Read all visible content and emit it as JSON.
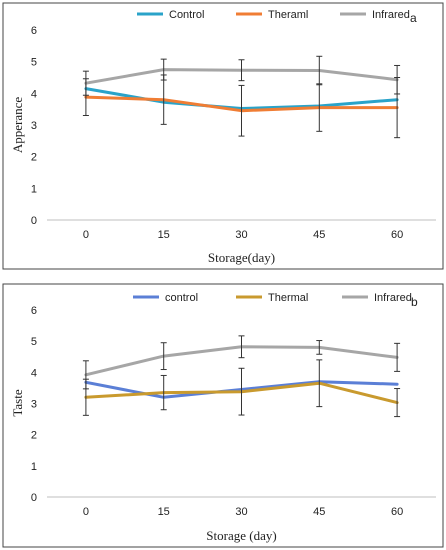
{
  "chart_data": [
    {
      "type": "line",
      "panel_label": "a",
      "x": [
        0,
        15,
        30,
        45,
        60
      ],
      "xlabel": "Storage(day)",
      "ylabel": "Apperance",
      "ylim": [
        0,
        6
      ],
      "yticks": [
        0,
        1,
        2,
        3,
        4,
        5,
        6
      ],
      "grid": false,
      "legend_position": "top",
      "series": [
        {
          "name": "Control",
          "color": "#2aa3c9",
          "values": [
            4.15,
            3.72,
            3.52,
            3.6,
            3.8
          ],
          "errors": [
            0.0,
            0.0,
            0.0,
            0.0,
            0.0
          ]
        },
        {
          "name": "Theraml",
          "color": "#f07d34",
          "values": [
            3.88,
            3.8,
            3.45,
            3.55,
            3.55
          ],
          "errors": [
            0.58,
            0.78,
            0.8,
            0.75,
            0.95
          ]
        },
        {
          "name": "Infrared",
          "color": "#a6a6a6",
          "values": [
            4.32,
            4.75,
            4.73,
            4.72,
            4.43
          ],
          "errors": [
            0.38,
            0.33,
            0.33,
            0.45,
            0.45
          ]
        }
      ]
    },
    {
      "type": "line",
      "panel_label": "b",
      "x": [
        0,
        15,
        30,
        45,
        60
      ],
      "xlabel": "Storage (day)",
      "ylabel": "Taste",
      "ylim": [
        0,
        6
      ],
      "yticks": [
        0,
        1,
        2,
        3,
        4,
        5,
        6
      ],
      "grid": false,
      "legend_position": "top",
      "series": [
        {
          "name": "control",
          "color": "#5b7fd6",
          "values": [
            3.68,
            3.2,
            3.45,
            3.7,
            3.62
          ],
          "errors": [
            0.0,
            0.0,
            0.0,
            0.0,
            0.0
          ]
        },
        {
          "name": "Thermal",
          "color": "#c99a2e",
          "values": [
            3.2,
            3.35,
            3.38,
            3.65,
            3.03
          ],
          "errors": [
            0.58,
            0.55,
            0.75,
            0.75,
            0.45
          ]
        },
        {
          "name": "Infrared",
          "color": "#a6a6a6",
          "values": [
            3.92,
            4.52,
            4.82,
            4.8,
            4.48
          ],
          "errors": [
            0.45,
            0.43,
            0.35,
            0.22,
            0.45
          ]
        }
      ]
    }
  ]
}
